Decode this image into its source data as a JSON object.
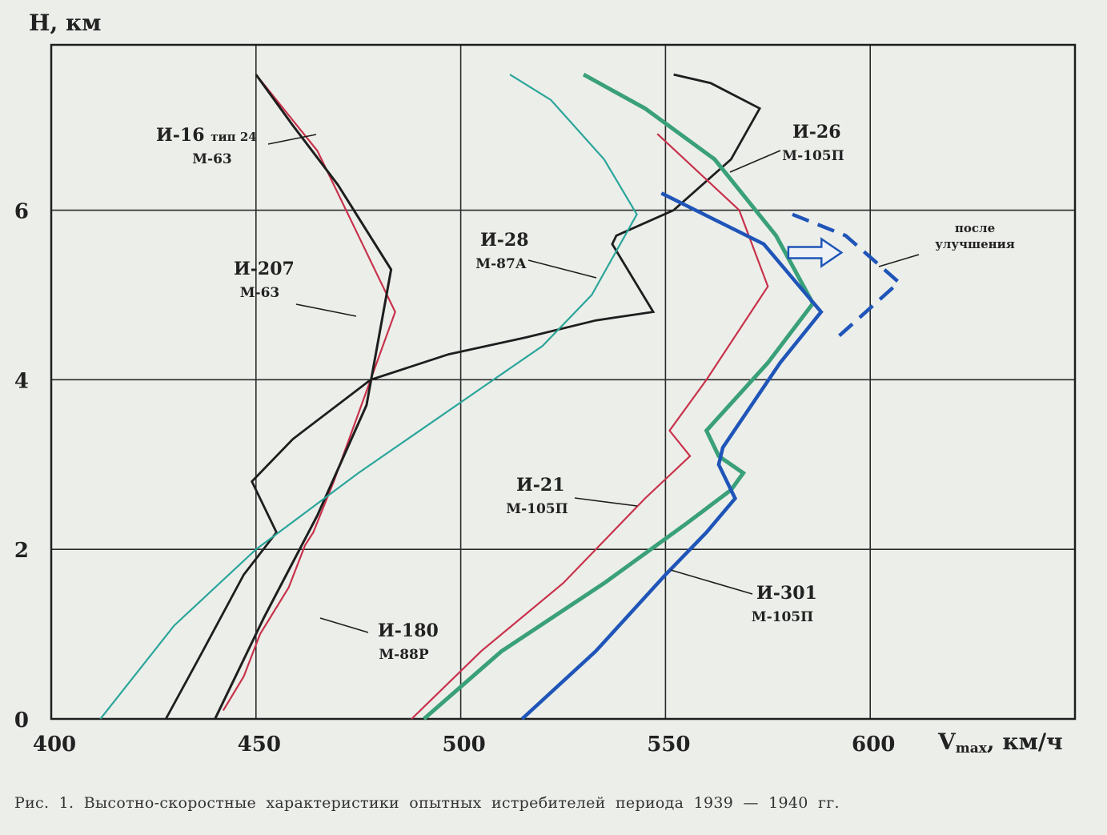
{
  "chart_data": {
    "type": "line",
    "xlabel": "V",
    "xlabel_sub": "max",
    "xlabel_unit": ", км/ч",
    "ylabel": "Н, км",
    "xlim": [
      400,
      650
    ],
    "ylim": [
      0,
      7.95
    ],
    "x_ticks": [
      400,
      450,
      500,
      550,
      600
    ],
    "y_ticks": [
      0,
      2,
      4,
      6
    ],
    "grid": true,
    "series": [
      {
        "name": "И-16 тип 24",
        "label_lines": [
          "И-16 тип 24",
          "М-63"
        ],
        "color": "#c8324a",
        "x": [
          442,
          447,
          451,
          458,
          462,
          464,
          469,
          484,
          474,
          465,
          450
        ],
        "y": [
          0.1,
          0.5,
          1.0,
          1.55,
          2.05,
          2.2,
          2.8,
          4.8,
          5.8,
          6.7,
          7.6
        ]
      },
      {
        "name": "И-207",
        "label_lines": [
          "И-207",
          "М-63"
        ],
        "color": "#1e1e1e",
        "x": [
          440,
          446,
          452,
          465,
          477,
          483,
          470,
          459,
          450
        ],
        "y": [
          0.0,
          0.6,
          1.2,
          2.4,
          3.7,
          5.3,
          6.3,
          7.0,
          7.6
        ]
      },
      {
        "name": "И-180",
        "label_lines": [
          "И-180",
          "М-88Р"
        ],
        "color": "#1e1e1e",
        "x": [
          428,
          437,
          447,
          455,
          449,
          459,
          478,
          497,
          516,
          533,
          547,
          537,
          538,
          552,
          566,
          573,
          561,
          552
        ],
        "y": [
          0.0,
          0.8,
          1.7,
          2.2,
          2.8,
          3.3,
          4.0,
          4.3,
          4.5,
          4.7,
          4.8,
          5.6,
          5.7,
          6.0,
          6.6,
          7.2,
          7.5,
          7.6
        ]
      },
      {
        "name": "И-28",
        "label_lines": [
          "И-28",
          "М-87А"
        ],
        "color": "#2aa59a",
        "x": [
          412,
          430,
          450,
          475,
          505,
          520,
          532,
          543,
          535,
          522,
          512
        ],
        "y": [
          0.0,
          1.1,
          2.0,
          2.9,
          3.9,
          4.4,
          5.0,
          5.95,
          6.6,
          7.3,
          7.6
        ]
      },
      {
        "name": "И-21",
        "label_lines": [
          "И-21",
          "М-105П"
        ],
        "color": "#c8324a",
        "x": [
          488,
          505,
          525,
          545,
          556,
          551,
          560,
          575,
          568,
          548
        ],
        "y": [
          0.0,
          0.8,
          1.6,
          2.6,
          3.1,
          3.4,
          4.0,
          5.1,
          6.0,
          6.9
        ]
      },
      {
        "name": "И-26",
        "label_lines": [
          "И-26",
          "М-105П"
        ],
        "color": "#3aa07a",
        "x": [
          491,
          510,
          535,
          555,
          566,
          569,
          563,
          560,
          575,
          586,
          577,
          562,
          545,
          530
        ],
        "y": [
          0.0,
          0.8,
          1.6,
          2.3,
          2.7,
          2.9,
          3.1,
          3.4,
          4.2,
          4.9,
          5.7,
          6.6,
          7.2,
          7.6
        ]
      },
      {
        "name": "И-301",
        "label_lines": [
          "И-301",
          "М-105П"
        ],
        "color": "#1f55b8",
        "x": [
          515,
          533,
          550,
          560,
          567,
          563,
          564,
          578,
          588,
          574,
          549
        ],
        "y": [
          0.0,
          0.8,
          1.7,
          2.2,
          2.6,
          3.0,
          3.2,
          4.2,
          4.8,
          5.6,
          6.2
        ]
      },
      {
        "name": "после улучшения",
        "label_lines": [
          "после",
          "улучшения"
        ],
        "color": "#1f55b8",
        "dashed": true,
        "x": [
          581,
          594,
          607,
          592
        ],
        "y": [
          5.95,
          5.7,
          5.15,
          4.5
        ]
      }
    ],
    "caption": "Рис. 1. Высотно-скоростные характеристики опытных истребителей периода 1939 — 1940 гг."
  }
}
